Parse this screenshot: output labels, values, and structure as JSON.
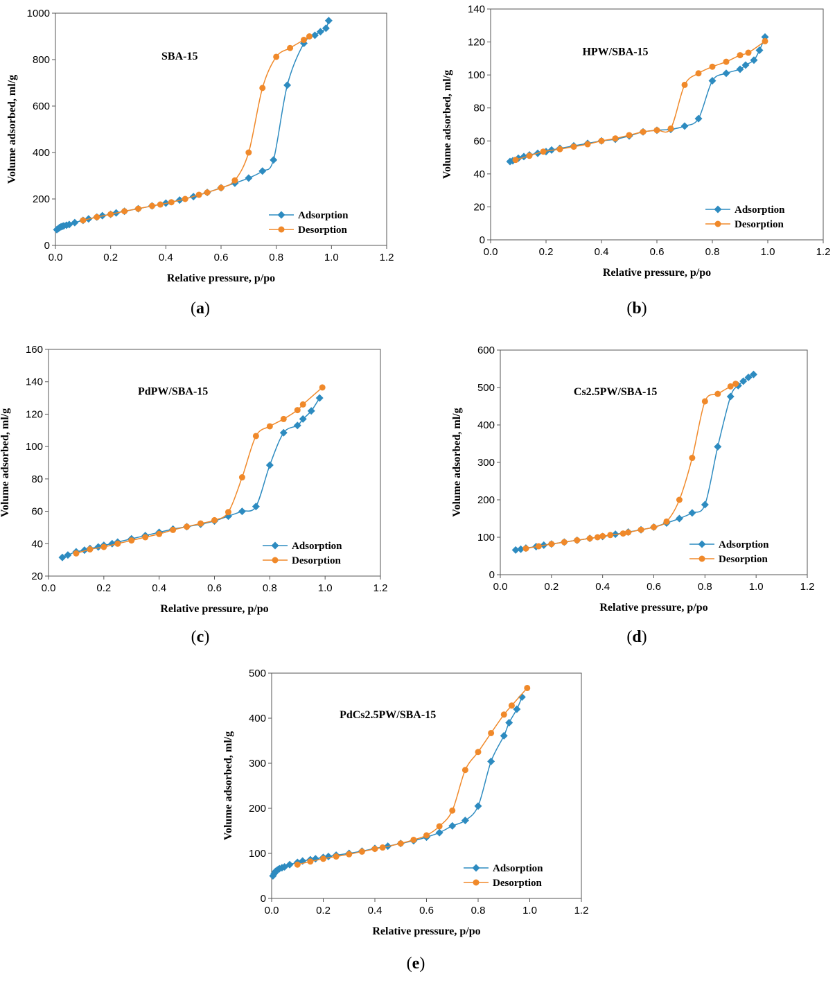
{
  "colors": {
    "adsorption": "#2d8bc0",
    "desorption": "#f0892a"
  },
  "chart_data": [
    {
      "type": "line",
      "panel": "a",
      "caption_label": "a",
      "title": "SBA-15",
      "xlabel": "Relative pressure, p/po",
      "ylabel": "Volume adsorbed, ml/g",
      "xlim": [
        0,
        1.2
      ],
      "ylim": [
        0,
        1000
      ],
      "xticks": [
        "0.0",
        "0.2",
        "0.4",
        "0.6",
        "0.8",
        "1.0",
        "1.2"
      ],
      "yticks": [
        "0",
        "200",
        "400",
        "600",
        "800",
        "1000"
      ],
      "series": [
        {
          "name": "Adsorption",
          "marker": "diamond",
          "x": [
            0.005,
            0.01,
            0.015,
            0.02,
            0.025,
            0.03,
            0.04,
            0.05,
            0.07,
            0.1,
            0.12,
            0.15,
            0.17,
            0.2,
            0.22,
            0.25,
            0.3,
            0.35,
            0.4,
            0.45,
            0.5,
            0.55,
            0.6,
            0.65,
            0.7,
            0.75,
            0.79,
            0.84,
            0.9,
            0.94,
            0.96,
            0.98,
            0.99
          ],
          "y": [
            68,
            72,
            77,
            80,
            82,
            84,
            87,
            90,
            98,
            108,
            114,
            122,
            128,
            134,
            140,
            147,
            158,
            170,
            182,
            195,
            210,
            228,
            248,
            268,
            290,
            320,
            368,
            690,
            870,
            905,
            920,
            935,
            968
          ]
        },
        {
          "name": "Desorption",
          "marker": "circle",
          "x": [
            0.1,
            0.15,
            0.2,
            0.25,
            0.3,
            0.35,
            0.38,
            0.42,
            0.47,
            0.52,
            0.55,
            0.6,
            0.65,
            0.7,
            0.75,
            0.8,
            0.85,
            0.9,
            0.92
          ],
          "y": [
            108,
            122,
            134,
            147,
            158,
            170,
            176,
            186,
            200,
            218,
            228,
            248,
            280,
            400,
            678,
            812,
            850,
            885,
            900
          ]
        }
      ],
      "legend": "lower-right"
    },
    {
      "type": "line",
      "panel": "b",
      "caption_label": "b",
      "title": "HPW/SBA-15",
      "xlabel": "Relative pressure, p/po",
      "ylabel": "Volume adsorbed, ml/g",
      "xlim": [
        0,
        1.2
      ],
      "ylim": [
        0,
        140
      ],
      "xticks": [
        "0.0",
        "0.2",
        "0.4",
        "0.6",
        "0.8",
        "1.0",
        "1.2"
      ],
      "yticks": [
        "0",
        "20",
        "40",
        "60",
        "80",
        "100",
        "120",
        "140"
      ],
      "series": [
        {
          "name": "Adsorption",
          "marker": "diamond",
          "x": [
            0.07,
            0.08,
            0.1,
            0.12,
            0.14,
            0.17,
            0.2,
            0.22,
            0.25,
            0.3,
            0.35,
            0.4,
            0.45,
            0.5,
            0.55,
            0.6,
            0.65,
            0.7,
            0.75,
            0.8,
            0.85,
            0.9,
            0.92,
            0.95,
            0.97,
            0.99
          ],
          "y": [
            47.5,
            48,
            49.5,
            50.5,
            51.5,
            52.5,
            53.5,
            54.5,
            55.5,
            57,
            58.5,
            60,
            61,
            63,
            65.5,
            66.5,
            67,
            69,
            73.5,
            96.5,
            101,
            103.5,
            106,
            109,
            115,
            123
          ]
        },
        {
          "name": "Desorption",
          "marker": "circle",
          "x": [
            0.09,
            0.14,
            0.19,
            0.25,
            0.3,
            0.35,
            0.4,
            0.45,
            0.5,
            0.55,
            0.6,
            0.65,
            0.7,
            0.75,
            0.8,
            0.85,
            0.9,
            0.93,
            0.99
          ],
          "y": [
            48.5,
            51,
            53.5,
            55,
            56.5,
            58,
            60,
            61.5,
            63.5,
            65.5,
            66.5,
            67.5,
            94,
            101,
            105,
            108,
            112,
            113.5,
            120.5
          ]
        }
      ],
      "legend": "lower-right"
    },
    {
      "type": "line",
      "panel": "c",
      "caption_label": "c",
      "title": "PdPW/SBA-15",
      "xlabel": "Relative pressure, p/po",
      "ylabel": "Volume adsorbed, ml/g",
      "xlim": [
        0,
        1.2
      ],
      "ylim": [
        20,
        160
      ],
      "xticks": [
        "0.0",
        "0.2",
        "0.4",
        "0.6",
        "0.8",
        "1.0",
        "1.2"
      ],
      "yticks": [
        "20",
        "40",
        "60",
        "80",
        "100",
        "120",
        "140",
        "160"
      ],
      "series": [
        {
          "name": "Adsorption",
          "marker": "diamond",
          "x": [
            0.05,
            0.07,
            0.1,
            0.13,
            0.15,
            0.18,
            0.2,
            0.23,
            0.25,
            0.3,
            0.35,
            0.4,
            0.45,
            0.5,
            0.55,
            0.6,
            0.65,
            0.7,
            0.75,
            0.8,
            0.85,
            0.9,
            0.92,
            0.95,
            0.98
          ],
          "y": [
            31.5,
            33,
            35,
            36,
            37,
            38,
            39,
            40,
            41,
            43,
            45,
            47,
            49,
            50.5,
            52,
            54,
            57,
            60,
            63,
            88.5,
            108.5,
            113,
            117,
            122,
            130
          ]
        },
        {
          "name": "Desorption",
          "marker": "circle",
          "x": [
            0.1,
            0.15,
            0.2,
            0.25,
            0.3,
            0.35,
            0.4,
            0.45,
            0.5,
            0.55,
            0.6,
            0.65,
            0.7,
            0.75,
            0.8,
            0.85,
            0.9,
            0.92,
            0.99
          ],
          "y": [
            34,
            36.5,
            38,
            40,
            42,
            44,
            46,
            48.5,
            50.5,
            52.5,
            54.5,
            59.5,
            81,
            106.5,
            112.5,
            117,
            122.5,
            126,
            136.5
          ]
        }
      ],
      "legend": "lower-right"
    },
    {
      "type": "line",
      "panel": "d",
      "caption_label": "d",
      "title": "Cs2.5PW/SBA-15",
      "xlabel": "Relative pressure, p/po",
      "ylabel": "Volume adsorbed, ml/g",
      "xlim": [
        0,
        1.2
      ],
      "ylim": [
        0,
        600
      ],
      "xticks": [
        "0.0",
        "0.2",
        "0.4",
        "0.6",
        "0.8",
        "1.0",
        "1.2"
      ],
      "yticks": [
        "0",
        "100",
        "200",
        "300",
        "400",
        "500",
        "600"
      ],
      "series": [
        {
          "name": "Adsorption",
          "marker": "diamond",
          "x": [
            0.06,
            0.08,
            0.1,
            0.14,
            0.17,
            0.2,
            0.25,
            0.3,
            0.35,
            0.4,
            0.45,
            0.5,
            0.55,
            0.6,
            0.65,
            0.7,
            0.75,
            0.8,
            0.85,
            0.9,
            0.93,
            0.95,
            0.97,
            0.99
          ],
          "y": [
            66,
            68,
            71,
            75,
            79,
            82,
            87,
            92,
            97,
            102,
            108,
            114,
            120,
            127,
            138,
            150,
            165,
            187,
            342,
            476,
            505,
            517,
            527,
            535
          ]
        },
        {
          "name": "Desorption",
          "marker": "circle",
          "x": [
            0.1,
            0.15,
            0.2,
            0.25,
            0.3,
            0.35,
            0.38,
            0.4,
            0.43,
            0.48,
            0.5,
            0.55,
            0.6,
            0.65,
            0.7,
            0.75,
            0.8,
            0.85,
            0.9,
            0.92
          ],
          "y": [
            70,
            76,
            82,
            87,
            92,
            97,
            100,
            103,
            106,
            110,
            113,
            120,
            127,
            142,
            200,
            312,
            463,
            483,
            503,
            510
          ]
        }
      ],
      "legend": "lower-right"
    },
    {
      "type": "line",
      "panel": "e",
      "caption_label": "e",
      "title": "PdCs2.5PW/SBA-15",
      "xlabel": "Relative pressure, p/po",
      "ylabel": "Volume adsorbed, ml/g",
      "xlim": [
        0,
        1.2
      ],
      "ylim": [
        0,
        500
      ],
      "xticks": [
        "0.0",
        "0.2",
        "0.4",
        "0.6",
        "0.8",
        "1.0",
        "1.2"
      ],
      "yticks": [
        "0",
        "100",
        "200",
        "300",
        "400",
        "500"
      ],
      "series": [
        {
          "name": "Adsorption",
          "marker": "diamond",
          "x": [
            0.005,
            0.01,
            0.015,
            0.02,
            0.025,
            0.03,
            0.04,
            0.05,
            0.07,
            0.1,
            0.12,
            0.15,
            0.17,
            0.2,
            0.22,
            0.25,
            0.3,
            0.35,
            0.4,
            0.45,
            0.5,
            0.55,
            0.6,
            0.65,
            0.7,
            0.75,
            0.8,
            0.85,
            0.9,
            0.92,
            0.95,
            0.97
          ],
          "y": [
            50,
            55,
            60,
            62,
            64,
            66,
            68,
            70,
            75,
            80,
            83,
            86,
            88,
            91,
            93,
            96,
            100,
            105,
            111,
            116,
            122,
            128,
            136,
            146,
            161,
            173,
            205,
            304,
            361,
            390,
            420,
            447
          ]
        },
        {
          "name": "Desorption",
          "marker": "circle",
          "x": [
            0.1,
            0.15,
            0.2,
            0.25,
            0.3,
            0.35,
            0.4,
            0.43,
            0.5,
            0.55,
            0.6,
            0.65,
            0.7,
            0.75,
            0.8,
            0.85,
            0.9,
            0.93,
            0.99
          ],
          "y": [
            75,
            82,
            88,
            93,
            98,
            104,
            110,
            113,
            122,
            130,
            140,
            160,
            195,
            285,
            325,
            367,
            408,
            428,
            467
          ]
        }
      ],
      "legend": "lower-right"
    }
  ]
}
